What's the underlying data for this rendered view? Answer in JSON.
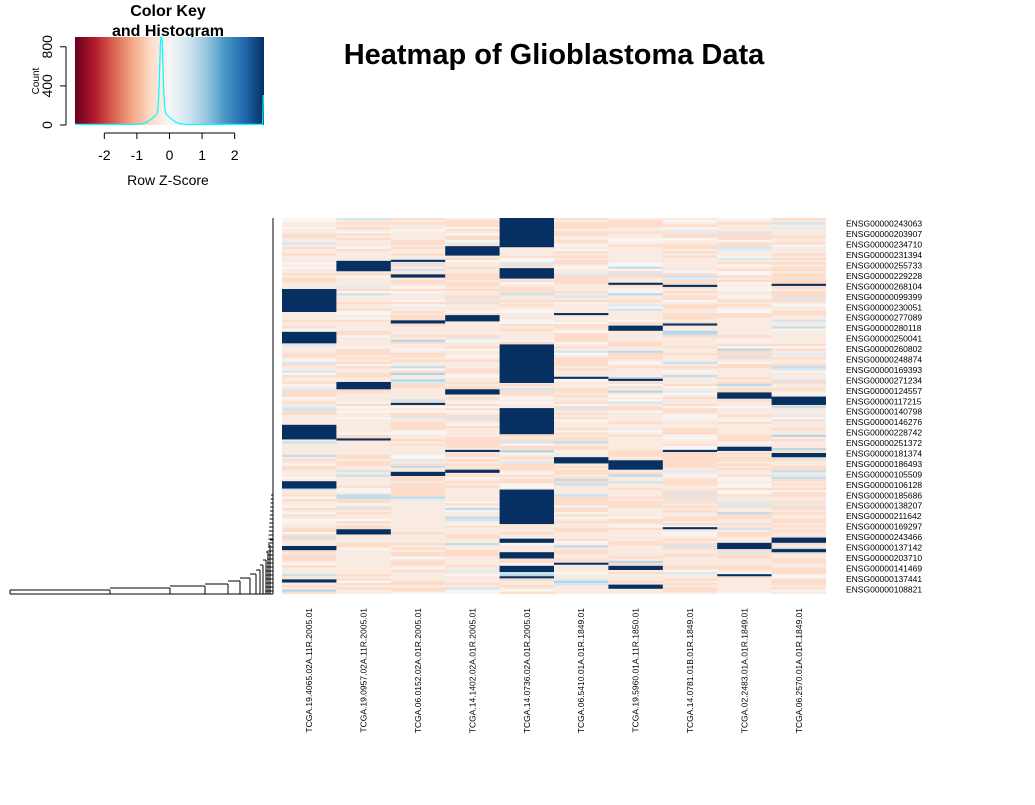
{
  "chart_data": {
    "type": "heatmap",
    "title": "Heatmap of Glioblastoma Data",
    "color_key": {
      "title_line1": "Color Key",
      "title_line2": "and Histogram",
      "xlabel": "Row Z-Score",
      "ylabel": "Count",
      "x_ticks": [
        "-2",
        "-1",
        "0",
        "1",
        "2"
      ],
      "x_tick_values": [
        -2,
        -1,
        0,
        1,
        2
      ],
      "y_ticks": [
        "0",
        "400",
        "800"
      ],
      "y_tick_values": [
        0,
        400,
        800
      ],
      "xlim": [
        -2.9,
        2.9
      ],
      "ylim": [
        0,
        900
      ],
      "palette": [
        "#67001F",
        "#B2182B",
        "#D6604D",
        "#F4A582",
        "#FDDBC7",
        "#F7F7F7",
        "#D1E5F0",
        "#92C5DE",
        "#4393C3",
        "#2166AC",
        "#053061"
      ],
      "histogram_color": "#00FFFF",
      "histogram_peak": {
        "x": -0.25,
        "count": 880
      }
    },
    "columns": [
      "TCGA.19.4065.02A.11R.2005.01",
      "TCGA.19.0957.02A.11R.2005.01",
      "TCGA.06.0152.02A.01R.2005.01",
      "TCGA.14.1402.02A.01R.2005.01",
      "TCGA.14.0736.02A.01R.2005.01",
      "TCGA.06.5410.01A.01R.1849.01",
      "TCGA.19.5960.01A.11R.1850.01",
      "TCGA.14.0781.01B.01R.1849.01",
      "TCGA.02.2483.01A.01R.1849.01",
      "TCGA.06.2570.01A.01R.1849.01"
    ],
    "row_labels": [
      "ENSG00000243063",
      "ENSG00000203907",
      "ENSG00000234710",
      "ENSG00000231394",
      "ENSG00000255733",
      "ENSG00000229228",
      "ENSG00000268104",
      "ENSG00000099399",
      "ENSG00000230051",
      "ENSG00000277089",
      "ENSG00000280118",
      "ENSG00000250041",
      "ENSG00000260802",
      "ENSG00000248874",
      "ENSG00000169393",
      "ENSG00000271234",
      "ENSG00000124557",
      "ENSG00000117215",
      "ENSG00000140798",
      "ENSG00000146276",
      "ENSG00000228742",
      "ENSG00000251372",
      "ENSG00000181374",
      "ENSG00000186493",
      "ENSG00000105509",
      "ENSG00000106128",
      "ENSG00000185686",
      "ENSG00000138207",
      "ENSG00000211642",
      "ENSG00000169297",
      "ENSG00000243466",
      "ENSG00000137142",
      "ENSG00000203710",
      "ENSG00000141469",
      "ENSG00000137441",
      "ENSG00000108821"
    ],
    "row_scale_span": 36,
    "baseline_z": -0.25,
    "high_z": 2.9,
    "high_blocks": [
      {
        "col": 0,
        "from": 6.8,
        "to": 9.0
      },
      {
        "col": 0,
        "from": 10.9,
        "to": 12.0
      },
      {
        "col": 0,
        "from": 19.8,
        "to": 21.2
      },
      {
        "col": 0,
        "from": 25.2,
        "to": 25.9
      },
      {
        "col": 0,
        "from": 31.4,
        "to": 31.8
      },
      {
        "col": 0,
        "from": 34.6,
        "to": 34.9
      },
      {
        "col": 1,
        "from": 4.1,
        "to": 5.1
      },
      {
        "col": 1,
        "from": 15.7,
        "to": 16.4
      },
      {
        "col": 1,
        "from": 29.8,
        "to": 30.3
      },
      {
        "col": 1,
        "from": 21.1,
        "to": 21.3
      },
      {
        "col": 2,
        "from": 4.0,
        "to": 4.2
      },
      {
        "col": 2,
        "from": 5.4,
        "to": 5.7
      },
      {
        "col": 2,
        "from": 9.8,
        "to": 10.1
      },
      {
        "col": 2,
        "from": 17.7,
        "to": 17.9
      },
      {
        "col": 2,
        "from": 24.3,
        "to": 24.7
      },
      {
        "col": 3,
        "from": 2.7,
        "to": 3.6
      },
      {
        "col": 3,
        "from": 9.3,
        "to": 9.9
      },
      {
        "col": 3,
        "from": 16.4,
        "to": 16.9
      },
      {
        "col": 3,
        "from": 22.2,
        "to": 22.4
      },
      {
        "col": 3,
        "from": 24.1,
        "to": 24.4
      },
      {
        "col": 4,
        "from": 0.0,
        "to": 2.8
      },
      {
        "col": 4,
        "from": 4.8,
        "to": 5.8
      },
      {
        "col": 4,
        "from": 12.1,
        "to": 15.8
      },
      {
        "col": 4,
        "from": 18.2,
        "to": 20.7
      },
      {
        "col": 4,
        "from": 26.0,
        "to": 29.3
      },
      {
        "col": 4,
        "from": 30.7,
        "to": 31.1
      },
      {
        "col": 4,
        "from": 32.0,
        "to": 32.6
      },
      {
        "col": 4,
        "from": 33.3,
        "to": 33.9
      },
      {
        "col": 4,
        "from": 34.3,
        "to": 34.5
      },
      {
        "col": 5,
        "from": 9.1,
        "to": 9.3
      },
      {
        "col": 5,
        "from": 15.2,
        "to": 15.4
      },
      {
        "col": 5,
        "from": 22.9,
        "to": 23.5
      },
      {
        "col": 5,
        "from": 33.0,
        "to": 33.2
      },
      {
        "col": 6,
        "from": 6.2,
        "to": 6.4
      },
      {
        "col": 6,
        "from": 10.3,
        "to": 10.8
      },
      {
        "col": 6,
        "from": 15.4,
        "to": 15.6
      },
      {
        "col": 6,
        "from": 23.2,
        "to": 24.1
      },
      {
        "col": 6,
        "from": 33.3,
        "to": 33.7
      },
      {
        "col": 6,
        "from": 35.1,
        "to": 35.5
      },
      {
        "col": 7,
        "from": 6.4,
        "to": 6.6
      },
      {
        "col": 7,
        "from": 10.1,
        "to": 10.3
      },
      {
        "col": 7,
        "from": 22.2,
        "to": 22.4
      },
      {
        "col": 7,
        "from": 29.6,
        "to": 29.8
      },
      {
        "col": 8,
        "from": 16.7,
        "to": 17.3
      },
      {
        "col": 8,
        "from": 21.9,
        "to": 22.3
      },
      {
        "col": 8,
        "from": 31.1,
        "to": 31.7
      },
      {
        "col": 8,
        "from": 34.1,
        "to": 34.3
      },
      {
        "col": 9,
        "from": 6.3,
        "to": 6.5
      },
      {
        "col": 9,
        "from": 17.1,
        "to": 17.9
      },
      {
        "col": 9,
        "from": 22.5,
        "to": 22.9
      },
      {
        "col": 9,
        "from": 30.6,
        "to": 31.1
      },
      {
        "col": 9,
        "from": 31.7,
        "to": 32.0
      }
    ]
  }
}
